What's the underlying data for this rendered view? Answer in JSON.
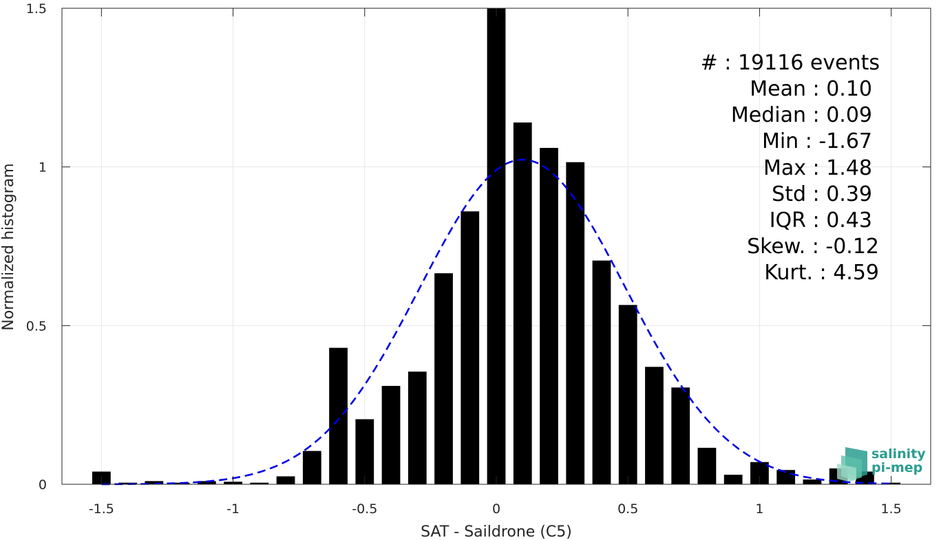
{
  "chart_data": {
    "type": "bar",
    "xlabel": "SAT - Saildrone (C5)",
    "ylabel": "Normalized histogram",
    "xlim": [
      -1.65,
      1.65
    ],
    "ylim": [
      0,
      1.5
    ],
    "xticks": [
      -1.5,
      -1,
      -0.5,
      0,
      0.5,
      1,
      1.5
    ],
    "xtick_labels": [
      "-1.5",
      "-1",
      "-0.5",
      "0",
      "0.5",
      "1",
      "1.5"
    ],
    "yticks": [
      0,
      0.5,
      1,
      1.5
    ],
    "ytick_labels": [
      "0",
      "0.5",
      "1",
      "1.5"
    ],
    "grid": true,
    "bar_color": "#000000",
    "curve_color": "#0000e6",
    "bar_width": 0.07,
    "bins": [
      {
        "x": -1.5,
        "y": 0.04
      },
      {
        "x": -1.4,
        "y": 0.005
      },
      {
        "x": -1.3,
        "y": 0.01
      },
      {
        "x": -1.2,
        "y": 0.005
      },
      {
        "x": -1.1,
        "y": 0.01
      },
      {
        "x": -1.0,
        "y": 0.008
      },
      {
        "x": -0.9,
        "y": 0.005
      },
      {
        "x": -0.8,
        "y": 0.025
      },
      {
        "x": -0.7,
        "y": 0.105
      },
      {
        "x": -0.6,
        "y": 0.43
      },
      {
        "x": -0.5,
        "y": 0.205
      },
      {
        "x": -0.4,
        "y": 0.31
      },
      {
        "x": -0.3,
        "y": 0.355
      },
      {
        "x": -0.2,
        "y": 0.665
      },
      {
        "x": -0.1,
        "y": 0.86
      },
      {
        "x": 0.0,
        "y": 1.5
      },
      {
        "x": 0.1,
        "y": 1.14
      },
      {
        "x": 0.2,
        "y": 1.06
      },
      {
        "x": 0.3,
        "y": 1.015
      },
      {
        "x": 0.4,
        "y": 0.705
      },
      {
        "x": 0.5,
        "y": 0.565
      },
      {
        "x": 0.6,
        "y": 0.37
      },
      {
        "x": 0.7,
        "y": 0.305
      },
      {
        "x": 0.8,
        "y": 0.115
      },
      {
        "x": 0.9,
        "y": 0.03
      },
      {
        "x": 1.0,
        "y": 0.07
      },
      {
        "x": 1.1,
        "y": 0.045
      },
      {
        "x": 1.2,
        "y": 0.015
      },
      {
        "x": 1.3,
        "y": 0.05
      },
      {
        "x": 1.4,
        "y": 0.04
      },
      {
        "x": 1.5,
        "y": 0.005
      }
    ],
    "fit_curve": {
      "type": "gaussian",
      "mean": 0.1,
      "std": 0.39
    }
  },
  "stats": {
    "count_line": "#  : 19116 events",
    "mean_line": "Mean : 0.10",
    "median_line": "Median : 0.09",
    "min_line": "Min : -1.67",
    "max_line": "Max : 1.48",
    "std_line": "Std : 0.39",
    "iqr_line": "IQR : 0.43",
    "skew_line": "Skew. : -0.12",
    "kurt_line": "Kurt. : 4.59"
  },
  "logo": {
    "line1": "salinity",
    "line2": "pi-mep"
  }
}
